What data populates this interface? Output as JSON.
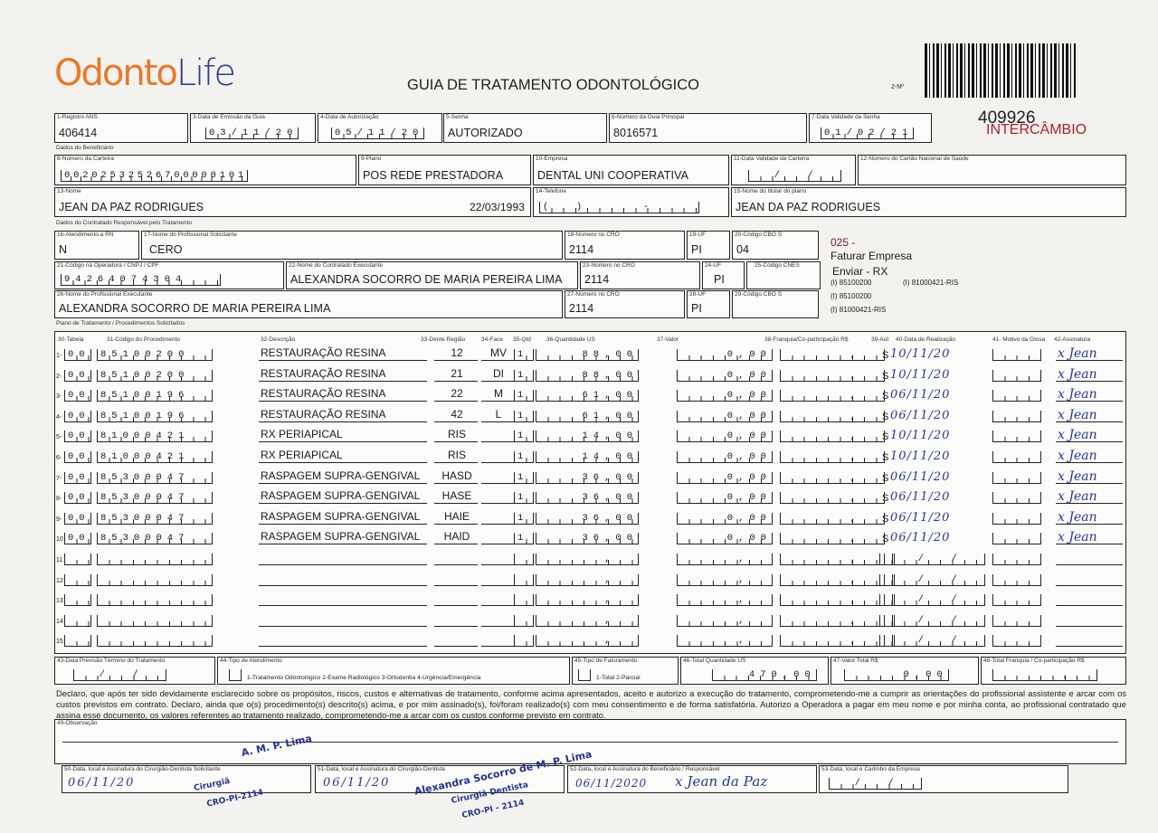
{
  "header": {
    "logo_text_1": "Odonto",
    "logo_text_2": "Life",
    "title": "GUIA DE TRATAMENTO ODONTOLÓGICO",
    "number_label": "2-Nº",
    "protocol": "409926",
    "intercambio": "INTERCÂMBIO"
  },
  "guide": {
    "f1": {
      "label": "1-Registro ANS",
      "value": "406414"
    },
    "f3": {
      "label": "3-Data de Emissão da Guia",
      "value": "03/11/20"
    },
    "f4": {
      "label": "4-Data de Autorização",
      "value": "05/11/20"
    },
    "f5": {
      "label": "5-Senha",
      "value": "AUTORIZADO"
    },
    "f6": {
      "label": "6-Número da Guia Principal",
      "value": "8016571"
    },
    "f7": {
      "label": "7-Data Validade da Senha",
      "value": "01/02/21"
    }
  },
  "beneficiary": {
    "section": "Dados do Beneficiário",
    "f8": {
      "label": "8-Número da Carteira",
      "value": "00202532526700000101"
    },
    "f9": {
      "label": "9-Plano",
      "value": "POS REDE PRESTADORA"
    },
    "f10": {
      "label": "10-Empresa",
      "value": "DENTAL UNI  COOPERATIVA"
    },
    "f11": {
      "label": "11-Data Validade da Carteira",
      "value": "  /  /  "
    },
    "f12": {
      "label": "12-Número do Cartão Nacional de Saúde",
      "value": ""
    },
    "f13": {
      "label": "13-Nome",
      "value": "JEAN DA PAZ RODRIGUES",
      "birth": "22/03/1993"
    },
    "f14": {
      "label": "14-Telefone",
      "value": "(  )     -    "
    },
    "f15": {
      "label": "15-Nome do titular do plano",
      "value": "JEAN DA PAZ RODRIGUES"
    }
  },
  "contracted": {
    "section": "Dados do Contratado Responsável pelo Tratamento",
    "f16": {
      "label": "16-Atendimento a RN",
      "value": "N"
    },
    "f17": {
      "label": "17-Nome do Profissional Solicitante",
      "value": "CERO"
    },
    "f18": {
      "label": "18-Número no CRO",
      "value": "2114"
    },
    "f19": {
      "label": "19-UF",
      "value": "PI"
    },
    "f20": {
      "label": "20-Código CBO S",
      "value": "04"
    },
    "f21": {
      "label": "21-Código na Operadora / CNPJ / CPF",
      "value": "94264074304   "
    },
    "f22": {
      "label": "22-Nome do Contratado Executante",
      "value": "ALEXANDRA SOCORRO DE MARIA PEREIRA LIMA"
    },
    "f23": {
      "label": "23-Número no CRO",
      "value": "2114"
    },
    "f24": {
      "label": "24-UF",
      "value": "PI"
    },
    "f25": {
      "label": "25-Código CNES",
      "value": ""
    },
    "f26": {
      "label": "26-Nome do Profissional Executante",
      "value": "ALEXANDRA SOCORRO DE MARIA PEREIRA LIMA"
    },
    "f27": {
      "label": "27-Número no CRO",
      "value": "2114"
    },
    "f28": {
      "label": "28-UF",
      "value": "PI"
    },
    "f29": {
      "label": "29-Código CBO S",
      "value": ""
    },
    "notes": {
      "code": "025 -",
      "billing": "Faturar Empresa",
      "send": "Enviar - RX",
      "line1a": "(I) 85100200",
      "line1b": "(I) 81000421-RIS",
      "line2": "(I) 85100200",
      "line3": "(I) 81000421-RIS"
    }
  },
  "plan": {
    "section": "Plano de Tratamento / Procedimentos Solicitados",
    "headers": {
      "tabela": "30-Tabela",
      "codigo": "31-Código do Procedimento",
      "descricao": "32-Descrição",
      "dente": "33-Dente Região",
      "face": "34-Face",
      "qtd": "35-Qtd",
      "qtd_us": "36-Quantidade US",
      "valor": "37-Valor",
      "franquia": "38-Franquia/Co-participação R$",
      "aut": "39-Aut",
      "data": "40-Data de Realização",
      "motivo": "41- Motivo da Glosa",
      "assinatura": "42-Assinatura"
    },
    "rows": [
      {
        "n": "1-",
        "tabela": "00",
        "codigo": "85100200",
        "descricao": "RESTAURAÇÃO RESINA",
        "dente": "12",
        "face": "MV",
        "qtd": "1",
        "qtd_us": "88,00",
        "valor": "0,00",
        "aut": "S",
        "data": "10/11/20",
        "assinatura": "x Jean"
      },
      {
        "n": "2-",
        "tabela": "00",
        "codigo": "85100200",
        "descricao": "RESTAURAÇÃO RESINA",
        "dente": "21",
        "face": "DI",
        "qtd": "1",
        "qtd_us": "88,00",
        "valor": "0,00",
        "aut": "S",
        "data": "10/11/20",
        "assinatura": "x Jean"
      },
      {
        "n": "3-",
        "tabela": "00",
        "codigo": "85100196",
        "descricao": "RESTAURAÇÃO RESINA",
        "dente": "22",
        "face": "M",
        "qtd": "1",
        "qtd_us": "61,00",
        "valor": "0,00",
        "aut": "S",
        "data": "06/11/20",
        "assinatura": "x Jean"
      },
      {
        "n": "4-",
        "tabela": "00",
        "codigo": "85100196",
        "descricao": "RESTAURAÇÃO RESINA",
        "dente": "42",
        "face": "L",
        "qtd": "1",
        "qtd_us": "61,00",
        "valor": "0,00",
        "aut": "S",
        "data": "06/11/20",
        "assinatura": "x Jean"
      },
      {
        "n": "5-",
        "tabela": "00",
        "codigo": "81000421",
        "descricao": "RX PERIAPICAL",
        "dente": "RIS",
        "face": "",
        "qtd": "1",
        "qtd_us": "14,00",
        "valor": "0,00",
        "aut": "S",
        "data": "10/11/20",
        "assinatura": "x Jean"
      },
      {
        "n": "6-",
        "tabela": "00",
        "codigo": "81000421",
        "descricao": "RX PERIAPICAL",
        "dente": "RIS",
        "face": "",
        "qtd": "1",
        "qtd_us": "14,00",
        "valor": "0,00",
        "aut": "S",
        "data": "10/11/20",
        "assinatura": "x Jean"
      },
      {
        "n": "7-",
        "tabela": "00",
        "codigo": "85300047",
        "descricao": "RASPAGEM SUPRA-GENGIVAL",
        "dente": "HASD",
        "face": "",
        "qtd": "1",
        "qtd_us": "36,00",
        "valor": "0,00",
        "aut": "S",
        "data": "06/11/20",
        "assinatura": "x Jean"
      },
      {
        "n": "8-",
        "tabela": "00",
        "codigo": "85300047",
        "descricao": "RASPAGEM SUPRA-GENGIVAL",
        "dente": "HASE",
        "face": "",
        "qtd": "1",
        "qtd_us": "36,00",
        "valor": "0,00",
        "aut": "S",
        "data": "06/11/20",
        "assinatura": "x Jean"
      },
      {
        "n": "9-",
        "tabela": "00",
        "codigo": "85300047",
        "descricao": "RASPAGEM SUPRA-GENGIVAL",
        "dente": "HAIE",
        "face": "",
        "qtd": "1",
        "qtd_us": "36,00",
        "valor": "0,00",
        "aut": "S",
        "data": "06/11/20",
        "assinatura": "x Jean"
      },
      {
        "n": "10",
        "tabela": "00",
        "codigo": "85300047",
        "descricao": "RASPAGEM SUPRA-GENGIVAL",
        "dente": "HAID",
        "face": "",
        "qtd": "1",
        "qtd_us": "36,00",
        "valor": "0,00",
        "aut": "S",
        "data": "06/11/20",
        "assinatura": "x Jean"
      },
      {
        "n": "11"
      },
      {
        "n": "12"
      },
      {
        "n": "13"
      },
      {
        "n": "14"
      },
      {
        "n": "15"
      }
    ]
  },
  "totals": {
    "f43": {
      "label": "43-Data Previsão Término do Tratamento",
      "value": "  /  /  "
    },
    "f44": {
      "label": "44-Tipo de Atendimento",
      "options": "1-Tratamento Odontológico  2-Exame Radiológico  3-Ortodontia  4-Urgência/Emergência"
    },
    "f45": {
      "label": "45-Tipo de Faturamento",
      "options": "1-Total  2-Parcial"
    },
    "f46": {
      "label": "46-Total Quantidade US",
      "value": "   470,00"
    },
    "f47": {
      "label": "47-Valor Total R$",
      "value": "     0,00"
    },
    "f48": {
      "label": "48-Total Franquia / Co-participação R$",
      "value": "      ,  "
    }
  },
  "declaration": "Declaro, que após ter sido devidamente esclarecido sobre os propósitos, riscos, custos e alternativas de tratamento, conforme acima apresentados, aceito e autorizo a execução do tratamento, comprometendo-me a cumprir as orientações do profissional assistente e arcar com os custos previstos em contrato. Declaro, ainda que o(s) procedimento(s) descrito(s) acima, e por mim assinado(s), foi/foram realizado(s) com meu consentimento e de forma satisfatória. Autorizo a Operadora a pagar em meu nome e por minha conta, ao profissional contratado que assina esse documento, os valores referentes ao tratamento realizado, comprometendo-me a arcar com os custos conforme previsto em contrato.",
  "observation": {
    "label": "49-Observação",
    "signature": "A. M. P. Lima"
  },
  "signatures": {
    "f50": {
      "label": "50-Data, local e Assinatura do Cirurgião-Dentista Solicitante",
      "date": "06/11/20",
      "stamp1": "Cirurgiã",
      "stamp2": "CRO-PI-2114"
    },
    "f51": {
      "label": "51-Data, local e Assinatura do Cirurgião-Dentista",
      "date": "06/11/20",
      "stamp1": "Alexandra Socorro de M. P. Lima",
      "stamp2": "Cirurgiã Dentista",
      "stamp3": "CRO-PI - 2114"
    },
    "f52": {
      "label": "52-Data, local e Assinatura do Beneficiário / Responsável",
      "date": "06/11/2020",
      "signature": "x Jean da Paz"
    },
    "f53": {
      "label": "53-Data, local e Carimbo da Empresa",
      "value": "  /  /  "
    }
  },
  "colors": {
    "logo_orange": "#e8792a",
    "logo_blue": "#2a3d8f",
    "intercambio": "#b0202a",
    "ink_blue": "#2b3690"
  }
}
